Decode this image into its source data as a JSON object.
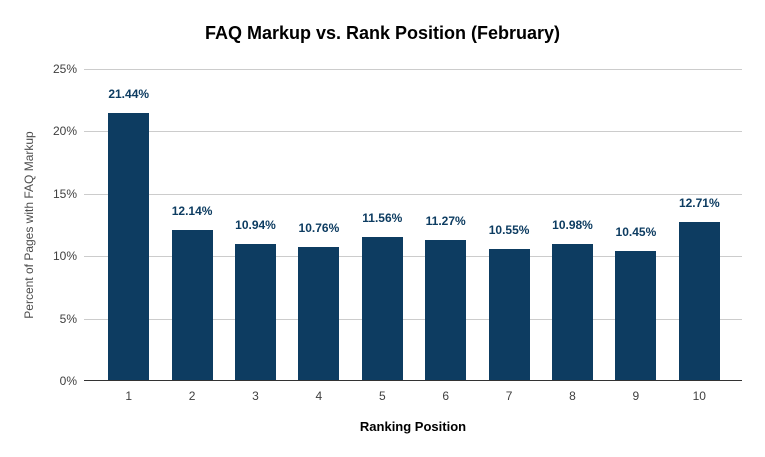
{
  "chart_data": {
    "type": "bar",
    "title": "FAQ Markup vs. Rank Position (February)",
    "xlabel": "Ranking Position",
    "ylabel": "Percent of Pages with FAQ Markup",
    "categories": [
      "1",
      "2",
      "3",
      "4",
      "5",
      "6",
      "7",
      "8",
      "9",
      "10"
    ],
    "values": [
      21.44,
      12.14,
      10.94,
      10.76,
      11.56,
      11.27,
      10.55,
      10.98,
      10.45,
      12.71
    ],
    "value_labels": [
      "21.44%",
      "12.14%",
      "10.94%",
      "10.76%",
      "11.56%",
      "11.27%",
      "10.55%",
      "10.98%",
      "10.45%",
      "12.71%"
    ],
    "y_ticks": [
      0,
      5,
      10,
      15,
      20,
      25
    ],
    "y_tick_labels": [
      "0%",
      "5%",
      "10%",
      "15%",
      "20%",
      "25%"
    ],
    "ylim": [
      0,
      25
    ],
    "grid": true,
    "legend": "none",
    "colors": {
      "bar": "#0d3c61",
      "value_label": "#0d3c61",
      "gridline": "#cccccc",
      "baseline": "#333333",
      "tick_text": "#3f3f3f",
      "y_title_text": "#4d4d4d",
      "title_text": "#000000",
      "background": "#ffffff"
    }
  }
}
